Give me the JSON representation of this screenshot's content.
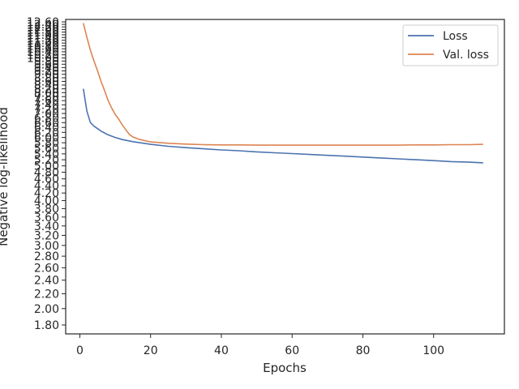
{
  "chart_data": {
    "type": "line",
    "title": "",
    "xlabel": "Epochs",
    "ylabel": "Negative log-likelihood",
    "xlim": [
      -4,
      120
    ],
    "xticks": [
      0,
      20,
      40,
      60,
      80,
      100
    ],
    "yscale": "log",
    "ylim": [
      1.7,
      12.8
    ],
    "yticks": [
      1.8,
      2.0,
      2.2,
      2.4,
      2.6,
      2.8,
      3.0,
      3.2,
      3.4,
      3.6,
      3.8,
      4.0,
      4.2,
      4.4,
      4.6,
      4.8,
      5.0,
      5.2,
      5.4,
      5.6,
      5.8,
      6.0,
      6.2,
      6.4,
      6.6,
      6.8,
      7.0,
      7.2,
      7.4,
      7.6,
      7.8,
      8.0,
      8.2,
      8.4,
      8.6,
      8.8,
      9.0,
      9.2,
      9.4,
      9.6,
      9.8,
      10.0,
      10.2,
      10.4,
      10.6,
      10.8,
      11.0,
      11.2,
      11.4,
      11.6,
      11.8,
      12.0,
      12.2,
      12.4,
      12.6
    ],
    "ytick_labels": [
      "1.80",
      "2.00",
      "2.20",
      "2.40",
      "2.60",
      "2.80",
      "3.00",
      "3.20",
      "3.40",
      "3.60",
      "3.80",
      "4.00",
      "4.20",
      "4.40",
      "4.60",
      "4.80",
      "5.00",
      "5.20",
      "5.40",
      "5.60",
      "5.80",
      "6.00",
      "6.20",
      "6.40",
      "6.60",
      "6.80",
      "7.00",
      "7.20",
      "7.40",
      "7.60",
      "7.80",
      "8.00",
      "8.20",
      "8.40",
      "8.60",
      "8.80",
      "9.00",
      "9.20",
      "9.40",
      "9.60",
      "9.80",
      "10.00",
      "10.20",
      "10.40",
      "10.60",
      "10.80",
      "11.00",
      "11.20",
      "11.40",
      "11.60",
      "11.80",
      "12.00",
      "12.20",
      "12.40",
      "12.60"
    ],
    "grid": false,
    "legend_position": "top-right",
    "series": [
      {
        "name": "Loss",
        "color": "#4c72b0",
        "x": [
          1,
          2,
          3,
          4,
          5,
          6,
          8,
          10,
          12,
          15,
          20,
          25,
          30,
          35,
          40,
          45,
          50,
          55,
          60,
          65,
          70,
          75,
          80,
          85,
          90,
          95,
          100,
          105,
          110,
          114
        ],
        "y": [
          8.2,
          7.1,
          6.6,
          6.45,
          6.35,
          6.25,
          6.1,
          6.0,
          5.92,
          5.84,
          5.74,
          5.67,
          5.62,
          5.58,
          5.54,
          5.51,
          5.47,
          5.44,
          5.41,
          5.38,
          5.35,
          5.32,
          5.29,
          5.26,
          5.23,
          5.2,
          5.17,
          5.14,
          5.12,
          5.1
        ]
      },
      {
        "name": "Val. loss",
        "color": "#dd8452",
        "x": [
          1,
          2,
          3,
          4,
          5,
          6,
          7,
          8,
          9,
          10,
          11,
          12,
          13,
          14,
          15,
          17,
          20,
          25,
          30,
          35,
          40,
          45,
          50,
          55,
          60,
          65,
          70,
          75,
          80,
          85,
          90,
          95,
          100,
          105,
          110,
          114
        ],
        "y": [
          12.5,
          11.4,
          10.5,
          9.8,
          9.2,
          8.6,
          8.1,
          7.6,
          7.25,
          6.95,
          6.75,
          6.5,
          6.3,
          6.12,
          6.02,
          5.92,
          5.83,
          5.78,
          5.75,
          5.73,
          5.72,
          5.72,
          5.71,
          5.71,
          5.71,
          5.71,
          5.71,
          5.71,
          5.71,
          5.71,
          5.71,
          5.72,
          5.72,
          5.73,
          5.73,
          5.74
        ]
      }
    ]
  }
}
